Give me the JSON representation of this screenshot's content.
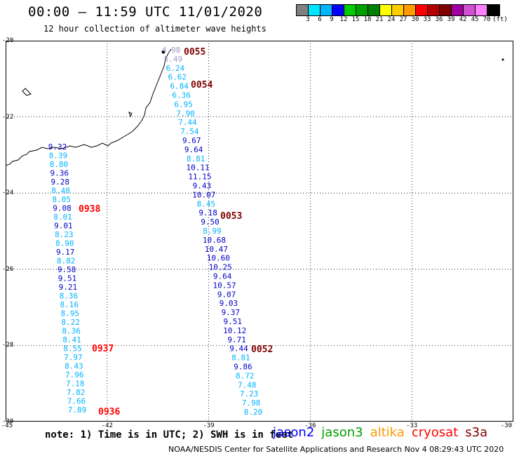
{
  "header": {
    "title": "00:00 — 11:59 UTC 11/01/2020",
    "subtitle": "12 hour collection of altimeter wave heights"
  },
  "legend": {
    "colors": [
      "#808080",
      "#00e5ff",
      "#00b4ff",
      "#0000ff",
      "#00cc00",
      "#00a000",
      "#008000",
      "#ffff00",
      "#ffcc00",
      "#ff9900",
      "#ff0000",
      "#b40000",
      "#800000",
      "#a000a0",
      "#d050d0",
      "#ff80ff",
      "#000000"
    ],
    "labels": [
      "3",
      "6",
      "9",
      "12",
      "15",
      "18",
      "21",
      "24",
      "27",
      "30",
      "33",
      "36",
      "39",
      "42",
      "45",
      "70",
      "(ft)"
    ]
  },
  "map": {
    "x_ticks": [
      "-45",
      "-42",
      "-39",
      "-36",
      "-33",
      "-30"
    ],
    "y_ticks": [
      "-20",
      "-22",
      "-24",
      "-26",
      "-28",
      "-30"
    ],
    "passes": [
      {
        "time": "0055",
        "color": "#800000"
      },
      {
        "time": "0054",
        "color": "#800000"
      },
      {
        "time": "0053",
        "color": "#800000"
      },
      {
        "time": "0052",
        "color": "#800000"
      },
      {
        "time": "0938",
        "color": "#ff0000"
      },
      {
        "time": "0937",
        "color": "#ff0000"
      },
      {
        "time": "0936",
        "color": "#ff0000"
      }
    ],
    "track_east": [
      "4.98",
      "5.49",
      "6.24",
      "6.62",
      "6.84",
      "6.36",
      "6.95",
      "7.90",
      "7.44",
      "7.54",
      "9.67",
      "9.64",
      "8.81",
      "10.11",
      "11.15",
      "9.43",
      "10.07",
      "8.45",
      "9.18",
      "9.50",
      "8.99",
      "10.68",
      "10.47",
      "10.60",
      "10.25",
      "9.64",
      "10.57",
      "9.07",
      "9.03",
      "9.37",
      "9.51",
      "10.12",
      "9.71",
      "9.44",
      "8.81",
      "9.86",
      "8.72",
      "7.48",
      "7.23",
      "7.98",
      "8.20"
    ],
    "track_west": [
      "9.32",
      "8.39",
      "8.80",
      "9.36",
      "9.28",
      "8.48",
      "8.05",
      "9.08",
      "8.01",
      "9.01",
      "8.23",
      "8.90",
      "9.17",
      "8.82",
      "9.58",
      "9.51",
      "9.21",
      "8.36",
      "8.16",
      "8.95",
      "8.22",
      "8.36",
      "8.41",
      "8.55",
      "7.97",
      "8.43",
      "7.96",
      "7.18",
      "7.82",
      "7.66",
      "7.89"
    ]
  },
  "footer": {
    "note": "note: 1) Time is in UTC; 2) SWH is in feet",
    "satellites": [
      {
        "name": "jason2",
        "color": "#0000ff"
      },
      {
        "name": "jason3",
        "color": "#00a000"
      },
      {
        "name": "altika",
        "color": "#ff9900"
      },
      {
        "name": "cryosat",
        "color": "#ff0000"
      },
      {
        "name": "s3a",
        "color": "#800000"
      }
    ],
    "credit": "NOAA/NESDIS Center for Satellite Applications and Research     Nov  4 08:29:43 UTC 2020"
  }
}
